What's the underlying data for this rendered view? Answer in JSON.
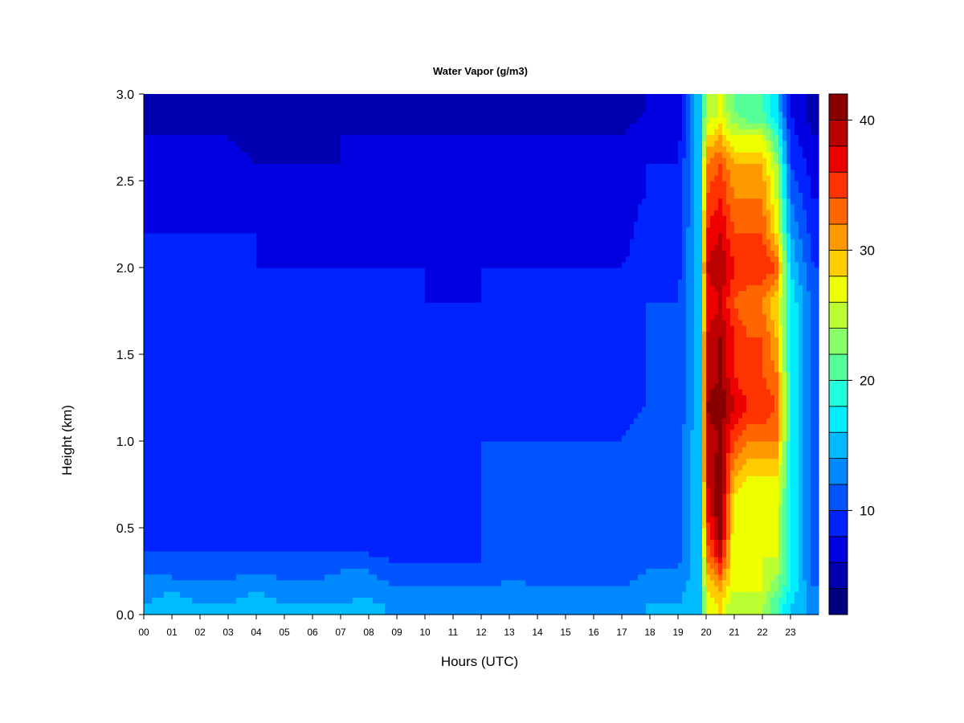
{
  "chart_data": {
    "type": "heatmap",
    "title": "Water Vapor (g/m3)",
    "xlabel": "Hours (UTC)",
    "ylabel": "Height (km)",
    "xlim": [
      0,
      24
    ],
    "ylim": [
      0,
      3
    ],
    "x_ticks": [
      "00",
      "01",
      "02",
      "03",
      "04",
      "05",
      "06",
      "07",
      "08",
      "09",
      "10",
      "11",
      "12",
      "13",
      "14",
      "15",
      "16",
      "17",
      "18",
      "19",
      "20",
      "21",
      "22",
      "23"
    ],
    "y_ticks": [
      "0.0",
      "0.5",
      "1.0",
      "1.5",
      "2.0",
      "2.5",
      "3.0"
    ],
    "colorbar": {
      "min": 2,
      "max": 42,
      "step": 2,
      "ticks": [
        "10",
        "20",
        "30",
        "40"
      ],
      "tick_values": [
        10,
        20,
        30,
        40
      ],
      "colors": [
        "#000080",
        "#0000b0",
        "#0000e0",
        "#0022ff",
        "#0055ff",
        "#0088ff",
        "#00bbff",
        "#00eeff",
        "#22ffdd",
        "#55ff99",
        "#88ff66",
        "#bbff33",
        "#eeff00",
        "#ffcc00",
        "#ff9900",
        "#ff6600",
        "#ff3300",
        "#ee0000",
        "#bb0000",
        "#880000"
      ]
    },
    "heights_km": [
      0.05,
      0.15,
      0.25,
      0.35,
      0.45,
      0.6,
      0.8,
      1.0,
      1.2,
      1.4,
      1.6,
      1.8,
      2.0,
      2.2,
      2.4,
      2.6,
      2.75,
      2.9
    ],
    "profiles": [
      {
        "hour": 0,
        "values": [
          14,
          13,
          12,
          10,
          10,
          9,
          9,
          9,
          9,
          10,
          10,
          10,
          9,
          8,
          8,
          7,
          6,
          5
        ]
      },
      {
        "hour": 1,
        "values": [
          15,
          14,
          11,
          10,
          9,
          8,
          8,
          8,
          8,
          9,
          10,
          9,
          8,
          8,
          7,
          7,
          6,
          5
        ]
      },
      {
        "hour": 2,
        "values": [
          14,
          13,
          11,
          10,
          9,
          8,
          8,
          8,
          8,
          9,
          9,
          9,
          8,
          8,
          7,
          7,
          6,
          5
        ]
      },
      {
        "hour": 3,
        "values": [
          14,
          13,
          11,
          10,
          9,
          8,
          8,
          8,
          8,
          9,
          9,
          9,
          8,
          8,
          7,
          7,
          6,
          4
        ]
      },
      {
        "hour": 4,
        "values": [
          15,
          14,
          12,
          10,
          10,
          8,
          8,
          8,
          9,
          10,
          10,
          9,
          8,
          8,
          7,
          6,
          5,
          4
        ]
      },
      {
        "hour": 5,
        "values": [
          14,
          13,
          11,
          10,
          9,
          8,
          8,
          8,
          8,
          8,
          9,
          8,
          8,
          7,
          7,
          6,
          5,
          4
        ]
      },
      {
        "hour": 6,
        "values": [
          14,
          13,
          11,
          10,
          9,
          8,
          8,
          8,
          8,
          8,
          8,
          8,
          8,
          7,
          7,
          6,
          5,
          4
        ]
      },
      {
        "hour": 7,
        "values": [
          14,
          13,
          12,
          10,
          9,
          8,
          8,
          8,
          8,
          8,
          8,
          8,
          8,
          7,
          7,
          6,
          6,
          5
        ]
      },
      {
        "hour": 8,
        "values": [
          15,
          13,
          12,
          10,
          9,
          8,
          8,
          8,
          8,
          8,
          8,
          8,
          8,
          7,
          7,
          6,
          6,
          5
        ]
      },
      {
        "hour": 9,
        "values": [
          13,
          12,
          11,
          9,
          8,
          8,
          8,
          8,
          8,
          8,
          8,
          8,
          8,
          7,
          7,
          7,
          6,
          5
        ]
      },
      {
        "hour": 10,
        "values": [
          13,
          12,
          11,
          9,
          8,
          8,
          8,
          8,
          8,
          8,
          8,
          8,
          8,
          7,
          7,
          6,
          6,
          5
        ]
      },
      {
        "hour": 11,
        "values": [
          13,
          12,
          11,
          9,
          8,
          8,
          8,
          8,
          8,
          8,
          8,
          8,
          7,
          7,
          7,
          6,
          6,
          5
        ]
      },
      {
        "hour": 12,
        "values": [
          13,
          12,
          10,
          10,
          10,
          10,
          10,
          10,
          9,
          8,
          8,
          8,
          8,
          7,
          7,
          7,
          6,
          4
        ]
      },
      {
        "hour": 13,
        "values": [
          14,
          13,
          11,
          10,
          10,
          10,
          10,
          10,
          9,
          8,
          8,
          8,
          8,
          7,
          7,
          7,
          6,
          5
        ]
      },
      {
        "hour": 14,
        "values": [
          13,
          12,
          11,
          10,
          10,
          10,
          10,
          10,
          9,
          8,
          8,
          8,
          8,
          7,
          7,
          7,
          6,
          5
        ]
      },
      {
        "hour": 15,
        "values": [
          13,
          12,
          11,
          10,
          10,
          10,
          10,
          10,
          9,
          8,
          8,
          8,
          8,
          7,
          7,
          7,
          6,
          5
        ]
      },
      {
        "hour": 16,
        "values": [
          13,
          12,
          11,
          10,
          10,
          10,
          10,
          10,
          9,
          8,
          8,
          8,
          8,
          7,
          7,
          7,
          6,
          5
        ]
      },
      {
        "hour": 17,
        "values": [
          13,
          12,
          11,
          10,
          10,
          10,
          10,
          10,
          9,
          8,
          8,
          8,
          8,
          7,
          7,
          7,
          6,
          5
        ]
      },
      {
        "hour": 17.8,
        "values": [
          14,
          13,
          12,
          11,
          11,
          11,
          11,
          11,
          10,
          10,
          10,
          10,
          9,
          9,
          8,
          8,
          7,
          6
        ]
      },
      {
        "hour": 19,
        "values": [
          14,
          13,
          12,
          11,
          11,
          11,
          11,
          11,
          10,
          10,
          10,
          10,
          9,
          9,
          8,
          8,
          7,
          6
        ]
      },
      {
        "hour": 19.8,
        "values": [
          16,
          16,
          16,
          16,
          16,
          16,
          16,
          16,
          16,
          16,
          16,
          16,
          16,
          16,
          16,
          16,
          16,
          16
        ]
      },
      {
        "hour": 20,
        "values": [
          26,
          28,
          30,
          32,
          34,
          36,
          38,
          38,
          40,
          38,
          38,
          36,
          38,
          36,
          34,
          32,
          28,
          24
        ]
      },
      {
        "hour": 20.5,
        "values": [
          28,
          30,
          34,
          38,
          40,
          42,
          42,
          40,
          42,
          40,
          40,
          38,
          40,
          38,
          36,
          34,
          30,
          26
        ]
      },
      {
        "hour": 21,
        "values": [
          24,
          26,
          26,
          26,
          26,
          26,
          30,
          34,
          38,
          36,
          36,
          34,
          36,
          34,
          32,
          30,
          26,
          22
        ]
      },
      {
        "hour": 21.5,
        "values": [
          24,
          26,
          26,
          26,
          26,
          26,
          28,
          32,
          36,
          34,
          34,
          32,
          36,
          34,
          32,
          30,
          26,
          20
        ]
      },
      {
        "hour": 22,
        "values": [
          24,
          26,
          26,
          26,
          26,
          26,
          28,
          32,
          36,
          34,
          34,
          32,
          36,
          34,
          32,
          30,
          26,
          20
        ]
      },
      {
        "hour": 22.5,
        "values": [
          20,
          22,
          24,
          26,
          26,
          26,
          28,
          32,
          34,
          32,
          30,
          28,
          34,
          28,
          26,
          24,
          20,
          16
        ]
      },
      {
        "hour": 23,
        "values": [
          16,
          18,
          18,
          18,
          18,
          18,
          18,
          18,
          18,
          18,
          18,
          18,
          16,
          14,
          12,
          10,
          9,
          8
        ]
      },
      {
        "hour": 23.8,
        "values": [
          13,
          12,
          11,
          11,
          11,
          11,
          11,
          11,
          11,
          11,
          11,
          11,
          10,
          9,
          8,
          7,
          6,
          5
        ]
      }
    ]
  }
}
